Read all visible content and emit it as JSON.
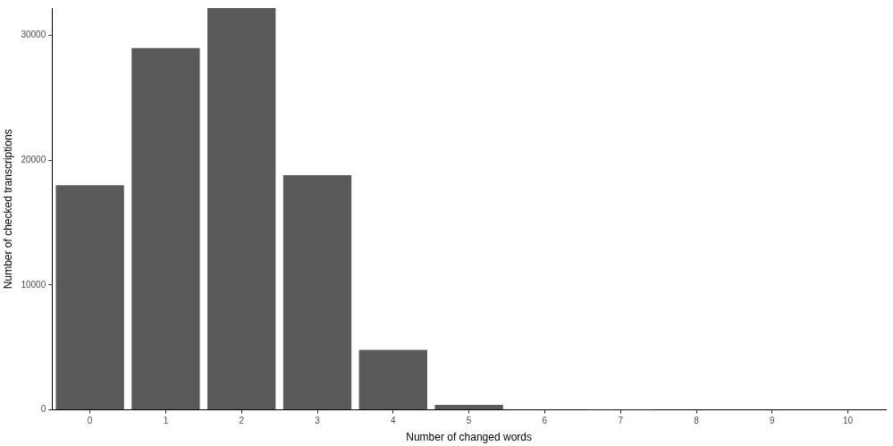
{
  "chart_data": {
    "type": "bar",
    "x_label": "Number of changed words",
    "y_label": "Number of checked transcriptions",
    "categories": [
      "0",
      "1",
      "2",
      "3",
      "4",
      "5",
      "6",
      "7",
      "8",
      "9",
      "10"
    ],
    "values": [
      18000,
      29000,
      32200,
      18800,
      4800,
      400,
      40,
      5,
      0,
      0,
      0
    ],
    "color": "#595959",
    "ylim": [
      0,
      32200
    ],
    "yticks": [
      0,
      10000,
      20000,
      30000
    ],
    "grid": false
  }
}
